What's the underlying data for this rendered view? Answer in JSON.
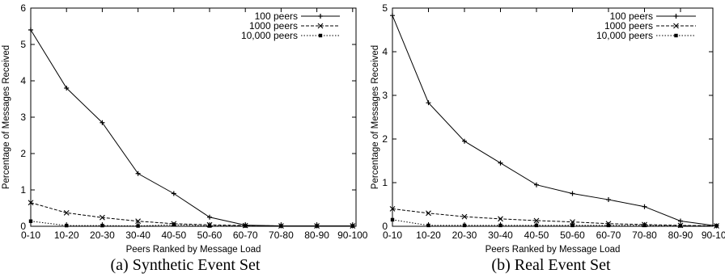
{
  "chart_data": [
    {
      "type": "line",
      "caption": "(a) Synthetic Event Set",
      "xlabel": "Peers Ranked by Message Load",
      "ylabel": "Percentage of Messages Received",
      "categories": [
        "0-10",
        "10-20",
        "20-30",
        "30-40",
        "40-50",
        "50-60",
        "60-70",
        "70-80",
        "80-90",
        "90-100"
      ],
      "yticks": [
        "0",
        "1",
        "2",
        "3",
        "4",
        "5",
        "6"
      ],
      "ylim": [
        0,
        6
      ],
      "legend_position": "top-right",
      "series": [
        {
          "name": "100 peers",
          "style": "solid",
          "marker": "plus",
          "values": [
            5.4,
            3.8,
            2.85,
            1.45,
            0.9,
            0.25,
            0.03,
            0.01,
            0.01,
            0.01
          ]
        },
        {
          "name": "1000 peers",
          "style": "dashed",
          "marker": "cross",
          "values": [
            0.65,
            0.37,
            0.24,
            0.14,
            0.07,
            0.04,
            0.02,
            0.01,
            0.01,
            0.01
          ]
        },
        {
          "name": "10,000 peers",
          "style": "dotted",
          "marker": "square",
          "values": [
            0.14,
            0.02,
            0.02,
            0.01,
            0.04,
            0.01,
            0.01,
            0.01,
            0.01,
            0.01
          ]
        }
      ]
    },
    {
      "type": "line",
      "caption": "(b) Real Event Set",
      "xlabel": "Peers Ranked by Message Load",
      "ylabel": "Percentage of Messages Received",
      "categories": [
        "0-10",
        "10-20",
        "20-30",
        "30-40",
        "40-50",
        "50-60",
        "60-70",
        "70-80",
        "80-90",
        "90-100"
      ],
      "yticks": [
        "0",
        "1",
        "2",
        "3",
        "4",
        "5"
      ],
      "ylim": [
        0,
        5
      ],
      "legend_position": "top-right",
      "series": [
        {
          "name": "100 peers",
          "style": "solid",
          "marker": "plus",
          "values": [
            4.83,
            2.83,
            1.95,
            1.45,
            0.95,
            0.75,
            0.61,
            0.45,
            0.12,
            0.01
          ]
        },
        {
          "name": "1000 peers",
          "style": "dashed",
          "marker": "cross",
          "values": [
            0.4,
            0.3,
            0.22,
            0.17,
            0.13,
            0.1,
            0.06,
            0.04,
            0.02,
            0.01
          ]
        },
        {
          "name": "10,000 peers",
          "style": "dotted",
          "marker": "square",
          "values": [
            0.15,
            0.02,
            0.02,
            0.02,
            0.02,
            0.02,
            0.02,
            0.02,
            0.01,
            0.01
          ]
        }
      ]
    }
  ]
}
